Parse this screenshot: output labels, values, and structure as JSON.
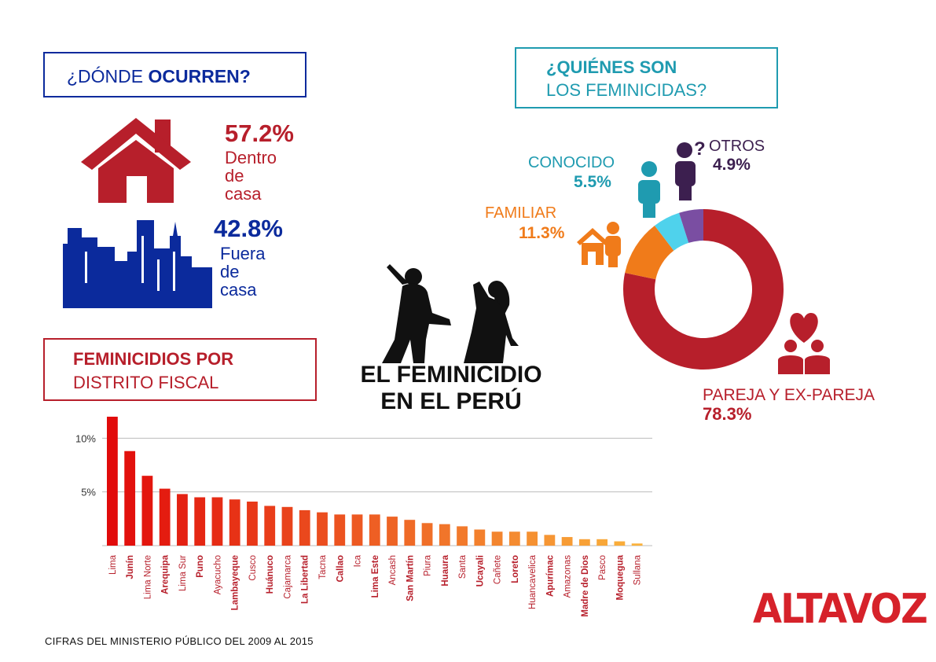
{
  "where": {
    "title_prefix": "¿DÓNDE ",
    "title_bold": "OCURREN?",
    "inside": {
      "percent": "57.2%",
      "label_lines": [
        "Dentro",
        "de",
        "casa"
      ]
    },
    "outside": {
      "percent": "42.8%",
      "label_lines": [
        "Fuera",
        "de",
        "casa"
      ]
    }
  },
  "who": {
    "title_line1": "¿QUIÉNES SON",
    "title_line2": "LOS FEMINICIDAS?",
    "chart_data": {
      "type": "pie",
      "slices": [
        {
          "label": "PAREJA Y EX-PAREJA",
          "value": 78.3,
          "value_text": "78.3%",
          "color": "#b71f2b"
        },
        {
          "label": "FAMILIAR",
          "value": 11.3,
          "value_text": "11.3%",
          "color": "#f07b1a"
        },
        {
          "label": "CONOCIDO",
          "value": 5.5,
          "value_text": "5.5%",
          "color": "#4fd2ec"
        },
        {
          "label": "OTROS",
          "value": 4.9,
          "value_text": "4.9%",
          "color": "#7a4ea2"
        }
      ]
    }
  },
  "center_title": {
    "line1": "EL FEMINICIDIO",
    "line2": "EN EL PERÚ"
  },
  "district": {
    "title_line1": "FEMINICIDIOS POR",
    "title_line2": "DISTRITO FISCAL",
    "chart_data": {
      "type": "bar",
      "categories": [
        "Lima",
        "Junín",
        "Lima Norte",
        "Arequipa",
        "Lima Sur",
        "Puno",
        "Ayacucho",
        "Lambayeque",
        "Cusco",
        "Huánuco",
        "Cajamarca",
        "La Libertad",
        "Tacna",
        "Callao",
        "Ica",
        "Lima Este",
        "Ancash",
        "San Martín",
        "Piura",
        "Huaura",
        "Santa",
        "Ucayali",
        "Cañete",
        "Loreto",
        "Huancavelica",
        "Apurímac",
        "Amazonas",
        "Madre de Dios",
        "Pasco",
        "Moquegua",
        "Sullana"
      ],
      "bold_categories": [
        "Junín",
        "Arequipa",
        "Puno",
        "Lambayeque",
        "Huánuco",
        "La Libertad",
        "Callao",
        "Lima Este",
        "San Martín",
        "Huaura",
        "Ucayali",
        "Loreto",
        "Apurímac",
        "Madre de Dios",
        "Moquegua"
      ],
      "values": [
        12.0,
        8.8,
        6.5,
        5.3,
        4.8,
        4.5,
        4.5,
        4.3,
        4.1,
        3.7,
        3.6,
        3.3,
        3.1,
        2.9,
        2.9,
        2.9,
        2.7,
        2.4,
        2.1,
        2.0,
        1.8,
        1.5,
        1.3,
        1.3,
        1.3,
        1.0,
        0.8,
        0.6,
        0.6,
        0.4,
        0.2
      ],
      "yticks": [
        {
          "value": 5,
          "label": "5%"
        },
        {
          "value": 10,
          "label": "10%"
        }
      ],
      "ylim": [
        0,
        12
      ],
      "grid": true,
      "colors": [
        "#e10b0b",
        "#fab23c"
      ]
    }
  },
  "footer": {
    "source": "CIFRAS DEL MINISTERIO PÚBLICO DEL 2009 AL 2015",
    "brand": "ALTAVOZ"
  },
  "colors": {
    "red": "#b71f2b",
    "navy": "#0b2a9c",
    "teal": "#1f9bb0",
    "orange": "#f07b1a",
    "purple": "#3c1f4f",
    "brand_red": "#d6222a"
  }
}
